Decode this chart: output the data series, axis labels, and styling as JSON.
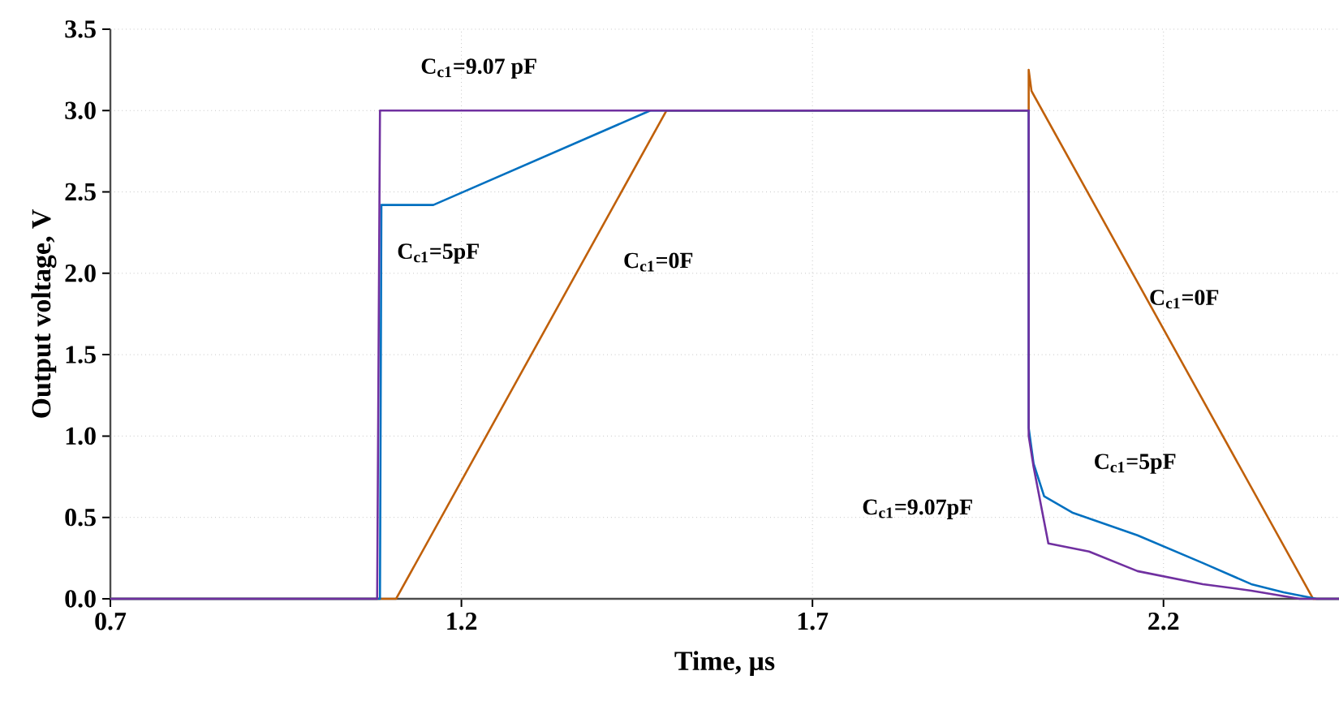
{
  "chart_data": {
    "type": "line",
    "xlabel": "Time, µs",
    "ylabel": "Output voltage, V",
    "xlim": [
      0.7,
      2.45
    ],
    "ylim": [
      0,
      3.5
    ],
    "xticks": [
      0.7,
      1.2,
      1.7,
      2.2
    ],
    "yticks": [
      {
        "value": 0,
        "label": "0.0"
      },
      {
        "value": 0.5,
        "label": "0.5"
      },
      {
        "value": 1,
        "label": "1.0"
      },
      {
        "value": 1.5,
        "label": "1.5"
      },
      {
        "value": 2,
        "label": "2.0"
      },
      {
        "value": 2.5,
        "label": "2.5"
      },
      {
        "value": 3,
        "label": "3.0"
      },
      {
        "value": 3.5,
        "label": "3.5"
      }
    ],
    "grid": true,
    "marker": "none",
    "line_style": "solid",
    "series": [
      {
        "color": "#c0600a",
        "x": [
          0.7,
          1.107,
          1.492,
          2.008,
          2.008,
          2.012,
          2.413,
          2.45
        ],
        "values": [
          0,
          0,
          3.0,
          3.0,
          3.25,
          3.12,
          0,
          0
        ]
      },
      {
        "color": "#0070c0",
        "x": [
          0.7,
          1.084,
          1.086,
          1.16,
          1.469,
          2.008,
          2.008,
          2.015,
          2.03,
          2.07,
          2.163,
          2.256,
          2.325,
          2.371,
          2.418,
          2.45
        ],
        "values": [
          0,
          0,
          2.42,
          2.42,
          3.0,
          3.0,
          1.05,
          0.83,
          0.63,
          0.53,
          0.39,
          0.22,
          0.09,
          0.04,
          0,
          0
        ]
      },
      {
        "color": "#7030a0",
        "x": [
          0.7,
          1.08,
          1.084,
          2.008,
          2.008,
          2.015,
          2.036,
          2.094,
          2.163,
          2.256,
          2.325,
          2.394,
          2.45
        ],
        "values": [
          0,
          0,
          3.0,
          3.0,
          1.0,
          0.81,
          0.34,
          0.29,
          0.17,
          0.09,
          0.05,
          0,
          0
        ]
      }
    ],
    "annotations": [
      "C$_{c1}$=9.07 pF",
      "C$_{c1}$=5pF",
      "C$_{c1}$=0F",
      "C$_{c1}$=0F",
      "C$_{c1}$=5pF",
      "C$_{c1}$=9.07pF"
    ]
  }
}
